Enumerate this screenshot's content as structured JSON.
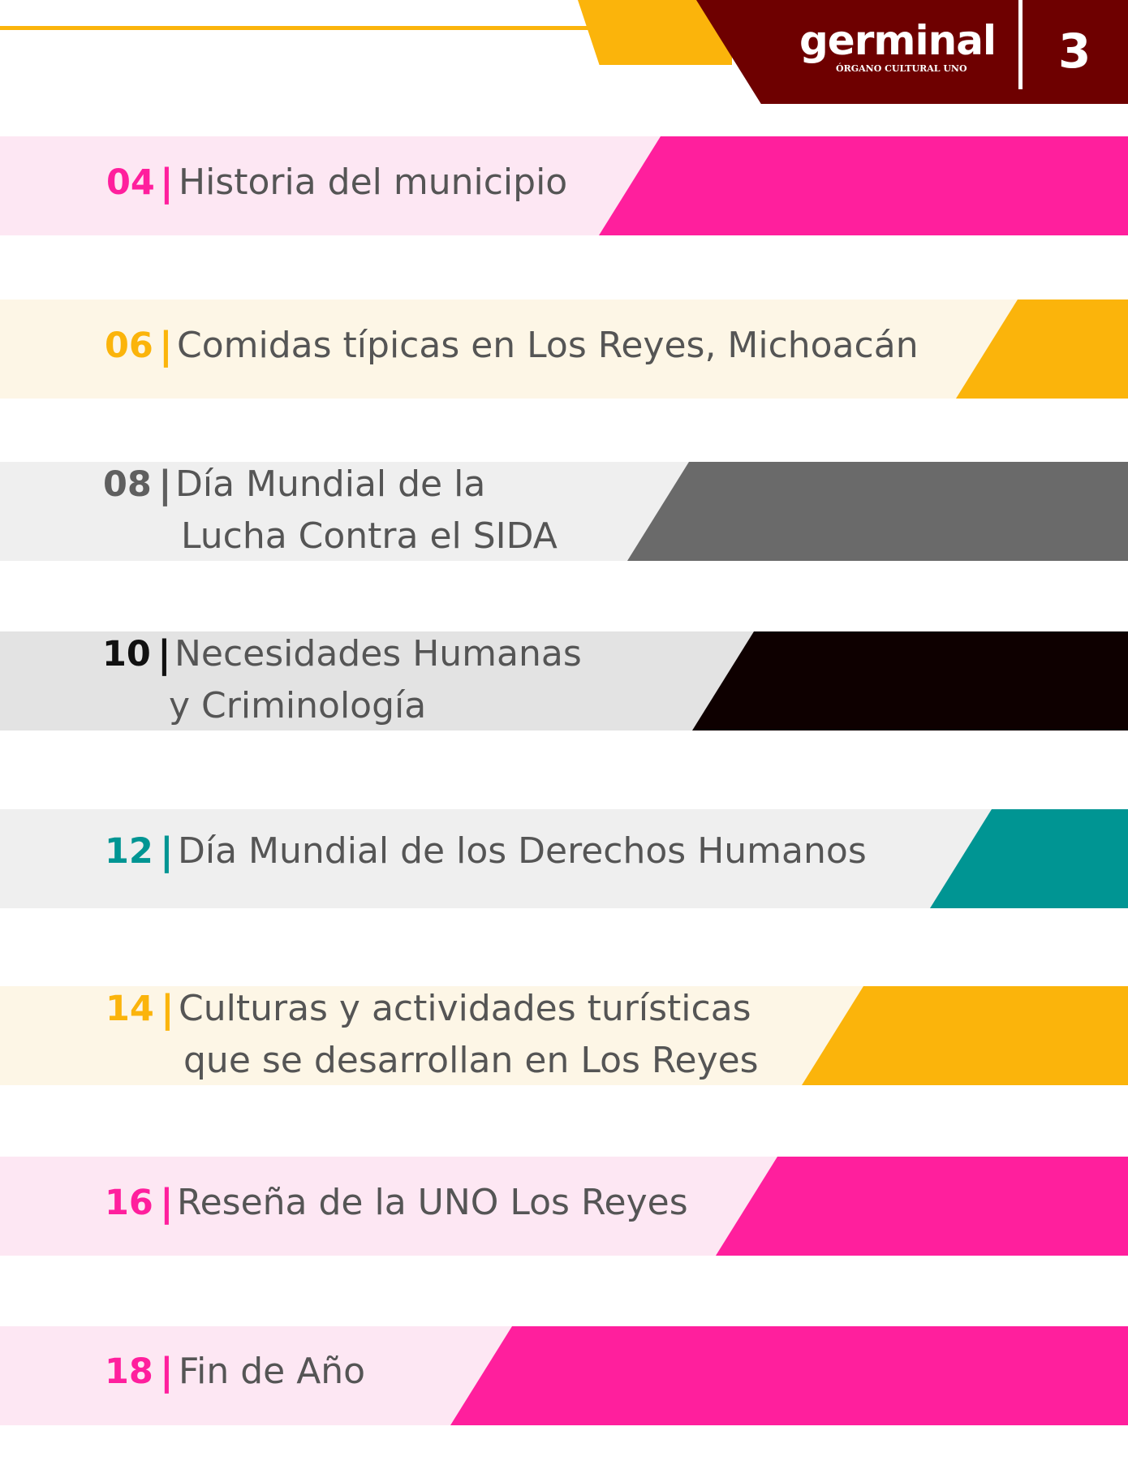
{
  "header": {
    "logo_text": "germinal",
    "logo_subtitle": "ÓRGANO CULTURAL UNO",
    "page_number": "3",
    "colors": {
      "line": "#fbb40b",
      "tab": "#6e0000"
    }
  },
  "toc": {
    "items": [
      {
        "number": "04",
        "bar": "|",
        "title_lines": [
          "Historia del municipio"
        ],
        "num_color": "#ff1f9d",
        "bg_color": "#fde7f3",
        "accent_color": "#ff1f9d"
      },
      {
        "number": "06",
        "bar": "|",
        "title_lines": [
          "Comidas típicas en Los Reyes, Michoacán"
        ],
        "num_color": "#fbb40b",
        "bg_color": "#fdf6e6",
        "accent_color": "#fbb40b"
      },
      {
        "number": "08",
        "bar": "|",
        "title_lines": [
          "Día Mundial de la",
          "Lucha Contra el SIDA"
        ],
        "num_color": "#5f5f5f",
        "bg_color": "#efefef",
        "accent_color": "#6a6a6a"
      },
      {
        "number": "10",
        "bar": "|",
        "title_lines": [
          "Necesidades Humanas",
          "y Criminología"
        ],
        "num_color": "#111111",
        "bg_color": "#e3e3e3",
        "accent_color": "#0e0000"
      },
      {
        "number": "12",
        "bar": "|",
        "title_lines": [
          "Día Mundial de los Derechos Humanos"
        ],
        "num_color": "#009593",
        "bg_color": "#efefef",
        "accent_color": "#009593"
      },
      {
        "number": "14",
        "bar": "|",
        "title_lines": [
          "Culturas y actividades turísticas",
          "que se desarrollan en Los Reyes"
        ],
        "num_color": "#fbb40b",
        "bg_color": "#fdf6e6",
        "accent_color": "#fbb40b"
      },
      {
        "number": "16",
        "bar": "|",
        "title_lines": [
          "Reseña de la UNO Los Reyes"
        ],
        "num_color": "#ff1f9d",
        "bg_color": "#fde7f3",
        "accent_color": "#ff1f9d"
      },
      {
        "number": "18",
        "bar": "|",
        "title_lines": [
          "Fin de Año"
        ],
        "num_color": "#ff1f9d",
        "bg_color": "#fde7f3",
        "accent_color": "#ff1f9d"
      }
    ]
  }
}
